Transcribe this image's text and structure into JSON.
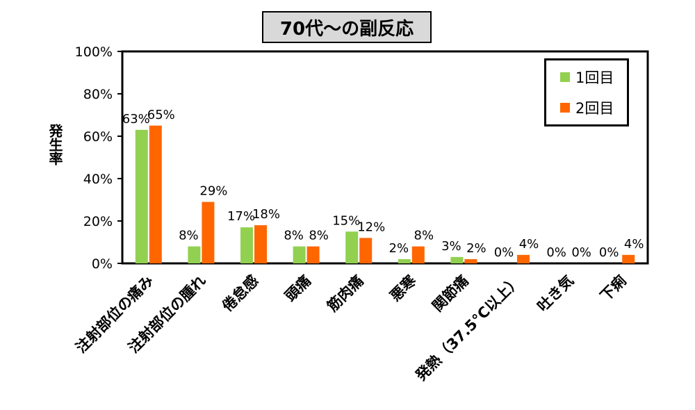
{
  "chart_data": {
    "type": "bar",
    "title": "70代～の副反応",
    "ylabel": "発生率",
    "xlabel": "",
    "ylim": [
      0,
      100
    ],
    "yticks": [
      "0%",
      "20%",
      "40%",
      "60%",
      "80%",
      "100%"
    ],
    "categories": [
      "注射部位の痛み",
      "注射部位の腫れ",
      "倦怠感",
      "頭痛",
      "筋肉痛",
      "悪寒",
      "関節痛",
      "発熱（37.5°C以上）",
      "吐き気",
      "下痢"
    ],
    "series": [
      {
        "name": "1回目",
        "color": "#92d050",
        "values": [
          63,
          8,
          17,
          8,
          15,
          2,
          3,
          0,
          0,
          0
        ],
        "labels": [
          "63%",
          "8%",
          "17%",
          "8%",
          "15%",
          "2%",
          "3%",
          "0%",
          "0%",
          "0%"
        ]
      },
      {
        "name": "2回目",
        "color": "#ff6600",
        "values": [
          65,
          29,
          18,
          8,
          12,
          8,
          2,
          4,
          0,
          4
        ],
        "labels": [
          "65%",
          "29%",
          "18%",
          "8%",
          "12%",
          "8%",
          "2%",
          "4%",
          "0%",
          "4%"
        ]
      }
    ],
    "legend_position": "top-right",
    "grid": false
  }
}
